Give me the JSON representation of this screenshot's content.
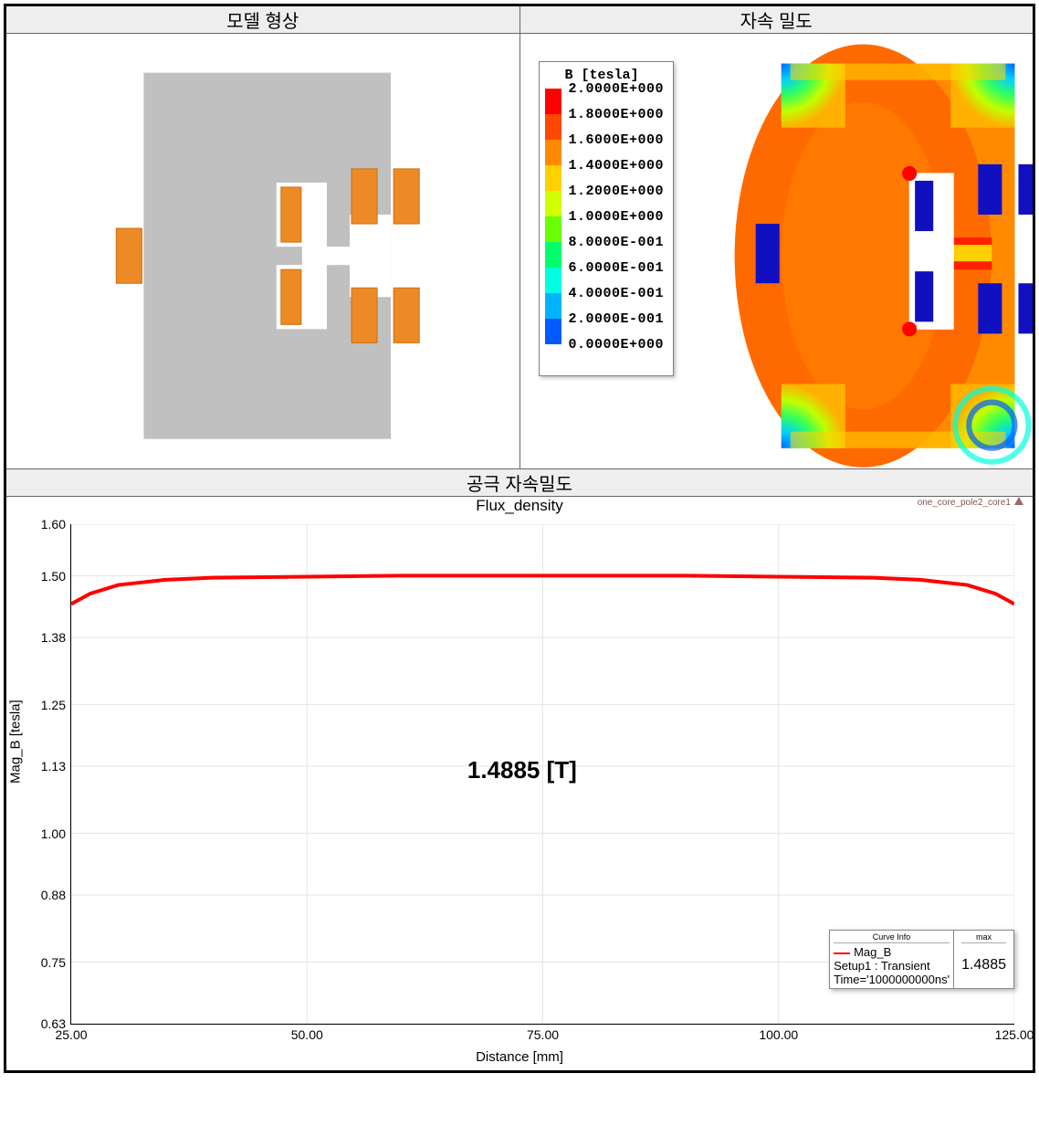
{
  "headers": {
    "top_left": "모델 형상",
    "top_right": "자속 밀도",
    "bottom": "공극 자속밀도"
  },
  "model": {
    "bg_color": "#c0c0c0",
    "coil_color": "#ec8b26",
    "coil_outline": "#cc6f10",
    "white": "#ffffff"
  },
  "legend": {
    "title": "B [tesla]",
    "font_family": "Courier New",
    "rows": [
      {
        "color": "#ff0000",
        "label": "2.0000E+000"
      },
      {
        "color": "#ff4800",
        "label": "1.8000E+000"
      },
      {
        "color": "#ff8a00",
        "label": "1.6000E+000"
      },
      {
        "color": "#ffd100",
        "label": "1.4000E+000"
      },
      {
        "color": "#d1ff00",
        "label": "1.2000E+000"
      },
      {
        "color": "#6aff00",
        "label": "1.0000E+000"
      },
      {
        "color": "#00ff6a",
        "label": "8.0000E-001"
      },
      {
        "color": "#00ffe1",
        "label": "6.0000E-001"
      },
      {
        "color": "#00b3ff",
        "label": "4.0000E-001"
      },
      {
        "color": "#005aff",
        "label": "2.0000E-001"
      },
      {
        "color": "#0000c8",
        "label": "0.0000E+000"
      }
    ]
  },
  "contour": {
    "coil_color": "#1010c0"
  },
  "chart": {
    "title": "Flux_density",
    "corner_text": "one_core_pole2_core1",
    "xlabel": "Distance [mm]",
    "ylabel": "Mag_B [tesla]",
    "xlim": [
      25,
      125
    ],
    "xticks": [
      25.0,
      50.0,
      75.0,
      100.0,
      125.0
    ],
    "ylim": [
      0.63,
      1.6
    ],
    "yticks": [
      0.63,
      0.75,
      0.88,
      1.0,
      1.13,
      1.25,
      1.38,
      1.5,
      1.6
    ],
    "ytick_labels": [
      "0.63",
      "0.75",
      "0.88",
      "1.00",
      "1.13",
      "1.25",
      "1.38",
      "1.50",
      "1.60"
    ],
    "xtick_labels": [
      "25.00",
      "50.00",
      "75.00",
      "100.00",
      "125.00"
    ],
    "line_color": "#ff0000",
    "line_width": 2,
    "grid_color": "#e5e5e5",
    "series": [
      {
        "x": 25,
        "y": 1.445
      },
      {
        "x": 27,
        "y": 1.465
      },
      {
        "x": 30,
        "y": 1.482
      },
      {
        "x": 35,
        "y": 1.492
      },
      {
        "x": 40,
        "y": 1.496
      },
      {
        "x": 50,
        "y": 1.498
      },
      {
        "x": 60,
        "y": 1.5
      },
      {
        "x": 70,
        "y": 1.5
      },
      {
        "x": 80,
        "y": 1.5
      },
      {
        "x": 90,
        "y": 1.5
      },
      {
        "x": 100,
        "y": 1.498
      },
      {
        "x": 110,
        "y": 1.496
      },
      {
        "x": 115,
        "y": 1.492
      },
      {
        "x": 120,
        "y": 1.482
      },
      {
        "x": 123,
        "y": 1.465
      },
      {
        "x": 125,
        "y": 1.445
      }
    ],
    "overlay_label": "1.4885 [T]",
    "curve_info": {
      "header_left": "Curve Info",
      "header_right": "max",
      "name": "Mag_B",
      "setup": "Setup1 : Transient",
      "time": "Time='1000000000ns'",
      "max": "1.4885"
    }
  }
}
